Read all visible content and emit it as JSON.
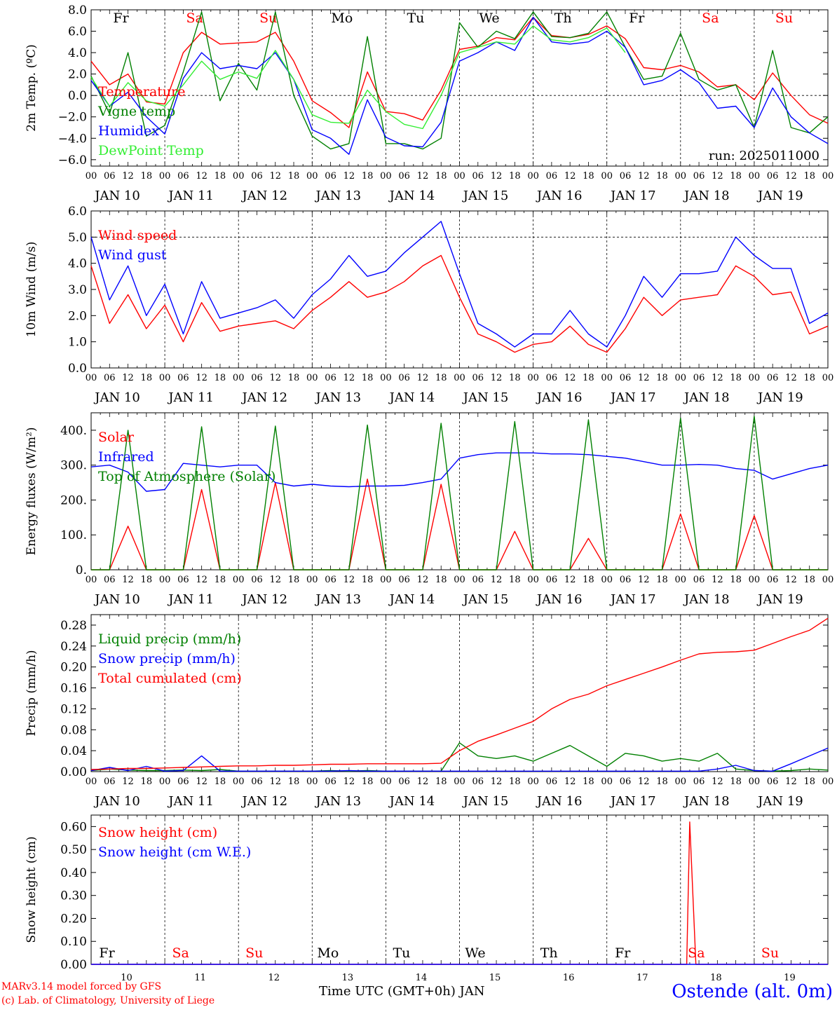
{
  "footer": {
    "model": "MARv3.14 model forced by GFS",
    "credit": "(c) Lab. of Climatology, University of Liege",
    "axis_title": "Time UTC (GMT+0h) JAN",
    "station": "Ostende (alt. 0m)"
  },
  "colors": {
    "red": "#ff0000",
    "green": "#008000",
    "blue": "#0000ff",
    "lime": "#33ee33",
    "we_red": "#ff0000"
  },
  "day_names": [
    "Fr",
    "Sa",
    "Su",
    "Mo",
    "Tu",
    "We",
    "Th",
    "Fr",
    "Sa",
    "Su"
  ],
  "day_names_weekend": [
    false,
    true,
    true,
    false,
    false,
    false,
    false,
    false,
    true,
    true
  ],
  "day_numbers": [
    "10",
    "11",
    "12",
    "13",
    "14",
    "15",
    "16",
    "17",
    "18",
    "19"
  ],
  "date_labels": [
    "JAN 10",
    "JAN 11",
    "JAN 12",
    "JAN 13",
    "JAN 14",
    "JAN 15",
    "JAN 16",
    "JAN 17",
    "JAN 18",
    "JAN 19"
  ],
  "hour_labels": [
    "00",
    "06",
    "12",
    "18"
  ],
  "hour_end_label": "00",
  "chart_data": [
    {
      "type": "line",
      "ylabel": "2m Temp. (ºC)",
      "ylim": [
        -6.6,
        8.0
      ],
      "yticks": [
        -6.0,
        -4.0,
        -2.0,
        0.0,
        2.0,
        4.0,
        6.0,
        8.0
      ],
      "ytick_labels": [
        "−6.0",
        "−4.0",
        "−2.0",
        "0.0",
        "2.0",
        "4.0",
        "6.0",
        "8.0"
      ],
      "run_label": "run: 2025011000",
      "reference_line": 0,
      "x": [
        0,
        6,
        12,
        18,
        24,
        30,
        36,
        42,
        48,
        54,
        60,
        66,
        72,
        78,
        84,
        90,
        96,
        102,
        108,
        114,
        120,
        126,
        132,
        138,
        144,
        150,
        156,
        162,
        168,
        174,
        180,
        186,
        192,
        198,
        204,
        210,
        216,
        222,
        228,
        234,
        240
      ],
      "series": [
        {
          "name": "Temperature",
          "color": "red",
          "values": [
            3.2,
            1.0,
            2.0,
            -0.6,
            -0.8,
            4.0,
            5.9,
            4.8,
            4.9,
            5.0,
            5.9,
            3.2,
            -0.5,
            -1.6,
            -3.0,
            2.2,
            -1.5,
            -1.7,
            -2.3,
            0.5,
            4.3,
            4.6,
            5.4,
            5.2,
            7.3,
            5.6,
            5.4,
            5.7,
            6.5,
            5.3,
            2.6,
            2.4,
            2.8,
            2.2,
            0.8,
            1.0,
            -0.4,
            2.1,
            0.0,
            -1.8,
            -2.6
          ]
        },
        {
          "name": "Vigne temp",
          "color": "green",
          "values": [
            1.8,
            -1.7,
            4.0,
            -3.8,
            -2.8,
            2.2,
            7.8,
            -0.5,
            3.0,
            0.5,
            7.8,
            0.0,
            -3.8,
            -5.0,
            -4.5,
            5.5,
            -4.5,
            -4.5,
            -5.0,
            -4.0,
            6.8,
            4.5,
            6.0,
            5.3,
            7.8,
            5.5,
            5.4,
            5.8,
            7.8,
            4.5,
            1.5,
            1.8,
            5.8,
            1.5,
            0.5,
            1.0,
            -3.0,
            4.2,
            -3.0,
            -3.5,
            -2.0
          ]
        },
        {
          "name": "Humidex",
          "color": "blue",
          "values": [
            1.4,
            -1.0,
            0.3,
            -2.0,
            -3.6,
            1.6,
            4.0,
            2.5,
            2.8,
            2.5,
            4.0,
            1.5,
            -3.2,
            -4.0,
            -5.5,
            -0.4,
            -3.9,
            -4.7,
            -4.8,
            -2.5,
            3.2,
            4.0,
            5.0,
            4.2,
            7.3,
            5.0,
            4.8,
            5.0,
            6.0,
            4.5,
            1.0,
            1.4,
            2.4,
            1.2,
            -1.2,
            -1.0,
            -3.0,
            0.7,
            -2.0,
            -3.5,
            -4.5
          ]
        },
        {
          "name": "DewPoint Temp",
          "color": "lime",
          "values": [
            1.7,
            -1.0,
            1.2,
            -0.5,
            -1.0,
            1.0,
            3.2,
            1.5,
            2.2,
            1.6,
            4.2,
            1.5,
            -1.8,
            -2.5,
            -2.6,
            0.5,
            -1.5,
            -2.7,
            -3.1,
            0.0,
            4.0,
            4.5,
            5.0,
            4.8,
            6.5,
            5.2,
            5.0,
            5.4,
            6.3,
            4.0,
            null,
            null,
            null,
            null,
            null,
            null,
            null,
            null,
            null,
            null,
            null
          ]
        }
      ]
    },
    {
      "type": "line",
      "ylabel": "10m Wind (m/s)",
      "ylim": [
        0.0,
        6.0
      ],
      "yticks": [
        0.0,
        1.0,
        2.0,
        3.0,
        4.0,
        5.0,
        6.0
      ],
      "ytick_labels": [
        "0.0",
        "1.0",
        "2.0",
        "3.0",
        "4.0",
        "5.0",
        "6.0"
      ],
      "reference_line": 5.0,
      "x": [
        0,
        6,
        12,
        18,
        24,
        30,
        36,
        42,
        48,
        54,
        60,
        66,
        72,
        78,
        84,
        90,
        96,
        102,
        108,
        114,
        120,
        126,
        132,
        138,
        144,
        150,
        156,
        162,
        168,
        174,
        180,
        186,
        192,
        198,
        204,
        210,
        216,
        222,
        228,
        234,
        240
      ],
      "series": [
        {
          "name": "Wind speed",
          "color": "red",
          "values": [
            3.9,
            1.7,
            2.8,
            1.5,
            2.4,
            1.0,
            2.5,
            1.4,
            1.6,
            1.7,
            1.8,
            1.5,
            2.2,
            2.7,
            3.3,
            2.7,
            2.9,
            3.3,
            3.9,
            4.3,
            2.7,
            1.3,
            1.0,
            0.6,
            0.9,
            1.0,
            1.6,
            0.9,
            0.6,
            1.5,
            2.7,
            2.0,
            2.6,
            2.7,
            2.8,
            3.9,
            3.5,
            2.8,
            2.9,
            1.3,
            1.6
          ]
        },
        {
          "name": "Wind gust",
          "color": "blue",
          "values": [
            5.0,
            2.6,
            3.9,
            2.0,
            3.2,
            1.3,
            3.3,
            1.9,
            2.1,
            2.3,
            2.6,
            1.9,
            2.8,
            3.4,
            4.3,
            3.5,
            3.7,
            4.4,
            5.0,
            5.6,
            3.6,
            1.7,
            1.3,
            0.8,
            1.3,
            1.3,
            2.2,
            1.3,
            0.8,
            2.0,
            3.5,
            2.7,
            3.6,
            3.6,
            3.7,
            5.0,
            4.3,
            3.8,
            3.8,
            1.7,
            2.1
          ]
        }
      ]
    },
    {
      "type": "line",
      "ylabel": "Energy fluxes (W/m²)",
      "ylim": [
        0,
        450
      ],
      "yticks": [
        0,
        100,
        200,
        300,
        400
      ],
      "ytick_labels": [
        "0.",
        "100.",
        "200.",
        "300.",
        "400."
      ],
      "reference_line": null,
      "x": [
        0,
        6,
        12,
        18,
        24,
        30,
        36,
        42,
        48,
        54,
        60,
        66,
        72,
        78,
        84,
        90,
        96,
        102,
        108,
        114,
        120,
        126,
        132,
        138,
        144,
        150,
        156,
        162,
        168,
        174,
        180,
        186,
        192,
        198,
        204,
        210,
        216,
        222,
        228,
        234,
        240
      ],
      "series": [
        {
          "name": "Solar",
          "color": "red",
          "values": [
            0,
            0,
            125,
            0,
            0,
            0,
            230,
            0,
            0,
            0,
            250,
            0,
            0,
            0,
            0,
            260,
            0,
            0,
            0,
            245,
            0,
            0,
            0,
            110,
            0,
            0,
            0,
            90,
            0,
            0,
            0,
            0,
            160,
            0,
            0,
            0,
            155,
            0,
            0,
            0,
            0
          ]
        },
        {
          "name": "Infrared",
          "color": "blue",
          "values": [
            295,
            300,
            280,
            225,
            230,
            305,
            300,
            295,
            300,
            300,
            250,
            240,
            245,
            240,
            238,
            240,
            240,
            242,
            250,
            260,
            320,
            330,
            335,
            335,
            335,
            332,
            332,
            330,
            325,
            320,
            310,
            300,
            300,
            302,
            300,
            290,
            285,
            260,
            275,
            290,
            300
          ]
        },
        {
          "name": "Top of Atmosphere (Solar)",
          "color": "green",
          "values": [
            0,
            0,
            400,
            0,
            0,
            0,
            410,
            0,
            0,
            0,
            412,
            0,
            0,
            0,
            0,
            415,
            0,
            0,
            0,
            420,
            0,
            0,
            0,
            425,
            0,
            0,
            0,
            430,
            0,
            0,
            0,
            0,
            435,
            0,
            0,
            0,
            440,
            0,
            0,
            0,
            0
          ]
        }
      ]
    },
    {
      "type": "line",
      "ylabel": "Precip (mm/h)",
      "ylim": [
        0.0,
        0.3
      ],
      "yticks": [
        0.0,
        0.04,
        0.08,
        0.12,
        0.16,
        0.2,
        0.24,
        0.28
      ],
      "ytick_labels": [
        "0.00",
        "0.04",
        "0.08",
        "0.12",
        "0.16",
        "0.20",
        "0.24",
        "0.28"
      ],
      "reference_line": null,
      "x": [
        0,
        6,
        12,
        18,
        24,
        30,
        36,
        42,
        48,
        54,
        60,
        66,
        72,
        78,
        84,
        90,
        96,
        102,
        108,
        114,
        120,
        126,
        132,
        138,
        144,
        150,
        156,
        162,
        168,
        174,
        180,
        186,
        192,
        198,
        204,
        210,
        216,
        222,
        228,
        234,
        240
      ],
      "series": [
        {
          "name": "Liquid precip (mm/h)",
          "color": "green",
          "values": [
            0.002,
            0.005,
            0.003,
            0.002,
            0.002,
            0.003,
            0.002,
            0.004,
            0.001,
            0.001,
            0.001,
            0.001,
            0.001,
            0.002,
            0.001,
            0.002,
            0.001,
            0.001,
            0.001,
            0.001,
            0.055,
            0.03,
            0.025,
            0.03,
            0.02,
            0.035,
            0.05,
            0.03,
            0.01,
            0.035,
            0.03,
            0.02,
            0.025,
            0.02,
            0.035,
            0.005,
            0.002,
            0.001,
            0.002,
            0.005,
            0.003
          ]
        },
        {
          "name": "Snow precip (mm/h)",
          "color": "blue",
          "values": [
            0.002,
            0.008,
            0.002,
            0.01,
            0.001,
            0.002,
            0.03,
            0.001,
            0.001,
            0.001,
            0.001,
            0.001,
            0.001,
            0.001,
            0.002,
            0.001,
            0.001,
            0.001,
            0.001,
            0.001,
            0.001,
            0.001,
            0.001,
            0.001,
            0.001,
            0.001,
            0.001,
            0.001,
            0.001,
            0.001,
            0.001,
            0.001,
            0.001,
            0.001,
            0.005,
            0.012,
            0.002,
            0.001,
            0.015,
            0.03,
            0.045
          ]
        },
        {
          "name": "Total cumulated (cm)",
          "color": "red",
          "values": [
            0.004,
            0.005,
            0.006,
            0.006,
            0.007,
            0.008,
            0.009,
            0.01,
            0.011,
            0.011,
            0.012,
            0.012,
            0.013,
            0.014,
            0.014,
            0.015,
            0.015,
            0.015,
            0.015,
            0.016,
            0.04,
            0.058,
            0.07,
            0.083,
            0.096,
            0.12,
            0.138,
            0.148,
            0.164,
            0.176,
            0.188,
            0.2,
            0.213,
            0.225,
            0.228,
            0.229,
            0.232,
            0.245,
            0.258,
            0.27,
            0.293
          ]
        }
      ]
    },
    {
      "type": "line",
      "ylabel": "Snow height (cm)",
      "ylim": [
        0.0,
        0.65
      ],
      "yticks": [
        0.0,
        0.1,
        0.2,
        0.3,
        0.4,
        0.5,
        0.6
      ],
      "ytick_labels": [
        "0.00",
        "0.10",
        "0.20",
        "0.30",
        "0.40",
        "0.50",
        "0.60"
      ],
      "reference_line": null,
      "x": [
        0,
        190,
        194,
        195,
        197,
        240
      ],
      "series": [
        {
          "name": "Snow height (cm)",
          "color": "red",
          "values": [
            0,
            0,
            0,
            0.62,
            0,
            0
          ]
        },
        {
          "name": "Snow height (cm W.E.)",
          "color": "blue",
          "values": [
            0,
            0,
            0,
            0,
            0,
            0
          ]
        }
      ]
    }
  ]
}
